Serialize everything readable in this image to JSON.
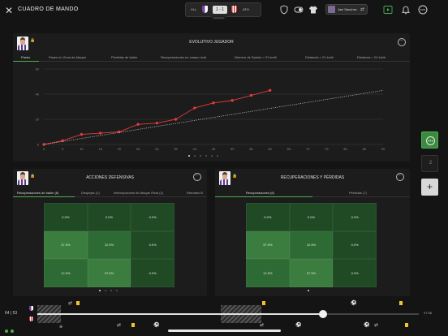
{
  "header": {
    "title": "CUADRO DE MANDO",
    "home_team": "VLL",
    "away_team": "ATH",
    "score": "1 - 1",
    "score_sub": "Valladolid",
    "user_name": "Javi Sanchez"
  },
  "evolutivo": {
    "title": "EVOLUTIVO JUGADOR",
    "tabs": [
      "Pases",
      "Pases en Zona de Ataque",
      "Pérdidas de balón",
      "Recuperaciones en campo rival",
      "Número de Sprints > 21 km/h",
      "Distancia > 21 km/h",
      "Distancia > 24 km/h"
    ],
    "active_tab": "Pases"
  },
  "chart_data": {
    "type": "line",
    "title": "",
    "xlabel": "",
    "ylabel": "",
    "xlim": [
      0,
      90
    ],
    "ylim": [
      0,
      60
    ],
    "x_ticks": [
      0,
      5,
      10,
      15,
      20,
      25,
      30,
      35,
      40,
      45,
      50,
      55,
      60,
      65,
      70,
      75,
      80,
      85,
      90
    ],
    "y_ticks": [
      0,
      20,
      40,
      60
    ],
    "grid": true,
    "series": [
      {
        "name": "",
        "color": "#e23b3b",
        "style": "solid-markers",
        "x": [
          0,
          5,
          10,
          15,
          20,
          25,
          30,
          35,
          40,
          45,
          50,
          55,
          60
        ],
        "y": [
          0,
          3,
          8,
          9,
          10,
          16,
          17,
          20,
          29,
          33,
          35,
          39,
          43
        ]
      },
      {
        "name": "",
        "color": "#bbbbbb",
        "style": "dotted",
        "x": [
          0,
          90
        ],
        "y": [
          0,
          43
        ]
      }
    ]
  },
  "acciones": {
    "title": "ACCIONES DEFENSIVAS",
    "tabs": [
      "Recuperaciones de balón (6)",
      "Despejes (1)",
      "Intercepciones de Ataque Rival (1)",
      "Remates B"
    ],
    "active_tab": "Recuperaciones de balón (6)",
    "cells": [
      "0.0%",
      "0.0%",
      "0.0%",
      "37.5%",
      "12.5%",
      "0.0%",
      "12.5%",
      "37.5%",
      "0.0%"
    ]
  },
  "recuperaciones": {
    "title": "RECUPERACIONES Y PÉRDIDAS",
    "tabs": [
      "Recuperaciones (6)",
      "Pérdidas (7)"
    ],
    "active_tab": "Recuperaciones (6)",
    "cells": [
      "0.0%",
      "0.0%",
      "0.0%",
      "37.5%",
      "12.5%",
      "0.0%",
      "12.5%",
      "37.5%",
      "0.0%"
    ]
  },
  "rail": {
    "page_number": "2"
  },
  "timeline": {
    "current_time": "64 | 53",
    "end_time": "97:58"
  },
  "colors": {
    "accent": "#4caf50",
    "line": "#e23b3b",
    "heat_dark": "#1f4a24",
    "heat_mid": "#2e6a33",
    "heat_light": "#3a7d3f"
  }
}
